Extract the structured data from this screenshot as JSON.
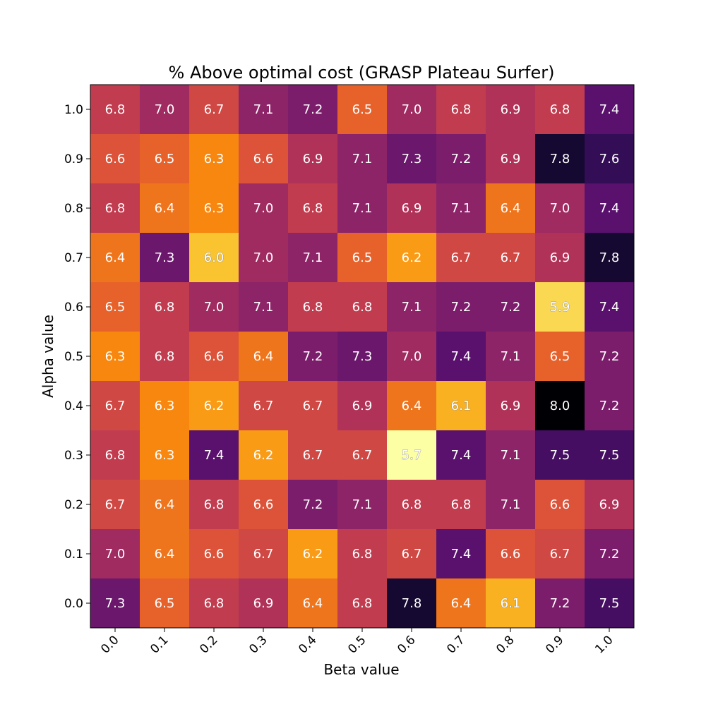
{
  "chart_data": {
    "type": "heatmap",
    "title": "% Above optimal cost (GRASP Plateau Surfer)",
    "xlabel": "Beta value",
    "ylabel": "Alpha value",
    "x_categories": [
      "0.0",
      "0.1",
      "0.2",
      "0.3",
      "0.4",
      "0.5",
      "0.6",
      "0.7",
      "0.8",
      "0.9",
      "1.0"
    ],
    "y_categories": [
      "1.0",
      "0.9",
      "0.8",
      "0.7",
      "0.6",
      "0.5",
      "0.4",
      "0.3",
      "0.2",
      "0.1",
      "0.0"
    ],
    "values": [
      [
        6.8,
        7.0,
        6.7,
        7.1,
        7.2,
        6.5,
        7.0,
        6.8,
        6.9,
        6.8,
        7.4
      ],
      [
        6.6,
        6.5,
        6.3,
        6.6,
        6.9,
        7.1,
        7.3,
        7.2,
        6.9,
        7.8,
        7.6
      ],
      [
        6.8,
        6.4,
        6.3,
        7.0,
        6.8,
        7.1,
        6.9,
        7.1,
        6.4,
        7.0,
        7.4
      ],
      [
        6.4,
        7.3,
        6.0,
        7.0,
        7.1,
        6.5,
        6.2,
        6.7,
        6.7,
        6.9,
        7.8
      ],
      [
        6.5,
        6.8,
        7.0,
        7.1,
        6.8,
        6.8,
        7.1,
        7.2,
        7.2,
        5.9,
        7.4
      ],
      [
        6.3,
        6.8,
        6.6,
        6.4,
        7.2,
        7.3,
        7.0,
        7.4,
        7.1,
        6.5,
        7.2
      ],
      [
        6.7,
        6.3,
        6.2,
        6.7,
        6.7,
        6.9,
        6.4,
        6.1,
        6.9,
        8.0,
        7.2
      ],
      [
        6.8,
        6.3,
        7.4,
        6.2,
        6.7,
        6.7,
        5.7,
        7.4,
        7.1,
        7.5,
        7.5
      ],
      [
        6.7,
        6.4,
        6.8,
        6.6,
        7.2,
        7.1,
        6.8,
        6.8,
        7.1,
        6.6,
        6.9
      ],
      [
        7.0,
        6.4,
        6.6,
        6.7,
        6.2,
        6.8,
        6.7,
        7.4,
        6.6,
        6.7,
        7.2
      ],
      [
        7.3,
        6.5,
        6.8,
        6.9,
        6.4,
        6.8,
        7.8,
        6.4,
        6.1,
        7.2,
        7.5
      ]
    ],
    "value_range": [
      5.7,
      8.0
    ],
    "colormap": "inferno-reversed",
    "grid": false
  }
}
